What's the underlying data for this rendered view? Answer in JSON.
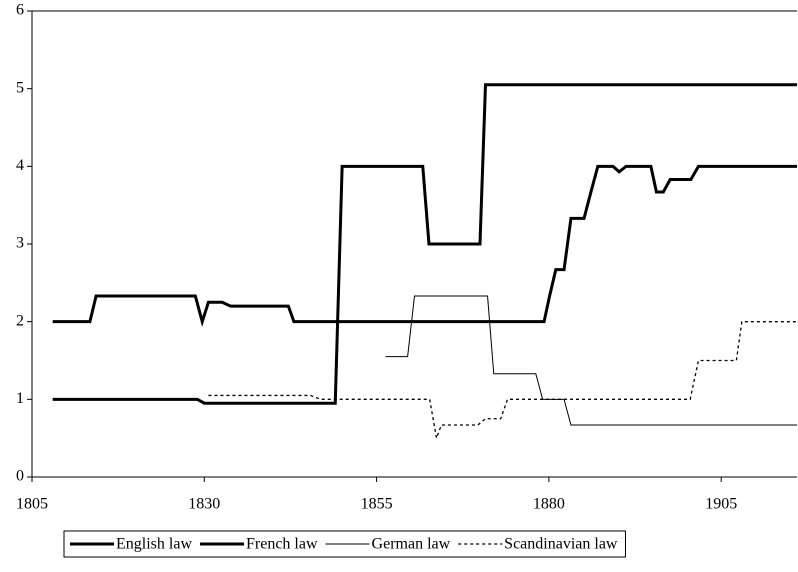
{
  "chart_data": {
    "type": "line",
    "xlim": [
      1805,
      1916
    ],
    "xticks": [
      1805,
      1830,
      1855,
      1880,
      1905
    ],
    "ylim": [
      0,
      6
    ],
    "yticks": [
      0,
      1,
      2,
      3,
      4,
      5,
      6
    ],
    "grid": false,
    "legend": "bottom",
    "series": [
      {
        "name": "English law",
        "color": "#000000",
        "line_width": 3,
        "dash": "none",
        "x": [
          1808,
          1829,
          1830,
          1849,
          1850,
          1861.7,
          1862.6,
          1870,
          1870.8,
          1916
        ],
        "values": [
          1,
          1,
          0.95,
          0.95,
          4,
          4,
          3,
          3,
          5.05,
          5.05
        ]
      },
      {
        "name": "French law",
        "color": "#000000",
        "line_width": 3,
        "dash": "none",
        "x": [
          1808,
          1813.4,
          1814.3,
          1828.7,
          1829.7,
          1830.6,
          1832.6,
          1833.8,
          1842.2,
          1843,
          1879.3,
          1880.1,
          1881,
          1882.2,
          1883.2,
          1885.1,
          1886.1,
          1887.1,
          1889.3,
          1890.2,
          1891.2,
          1894.8,
          1895.6,
          1896.6,
          1897.6,
          1900.6,
          1901.7,
          1916
        ],
        "values": [
          2,
          2,
          2.33,
          2.33,
          2,
          2.25,
          2.25,
          2.2,
          2.2,
          2,
          2,
          2.33,
          2.67,
          2.67,
          3.33,
          3.33,
          3.67,
          4,
          4,
          3.93,
          4,
          4,
          3.67,
          3.67,
          3.83,
          3.83,
          4,
          4
        ]
      },
      {
        "name": "German law",
        "color": "#000000",
        "line_width": 1,
        "dash": "none",
        "x": [
          1856.3,
          1859.5,
          1860.5,
          1871.1,
          1872,
          1878.1,
          1879.1,
          1882.2,
          1883.2,
          1916
        ],
        "values": [
          1.55,
          1.55,
          2.33,
          2.33,
          1.33,
          1.33,
          1,
          1,
          0.67,
          0.67
        ]
      },
      {
        "name": "Scandinavian law",
        "color": "#000000",
        "line_width": 1.3,
        "dash": "3,3",
        "x": [
          1830.6,
          1845.4,
          1846.9,
          1862.7,
          1863.7,
          1864.4,
          1869.7,
          1870.8,
          1873,
          1874,
          1900.5,
          1901.7,
          1907.2,
          1908,
          1916
        ],
        "values": [
          1.05,
          1.05,
          1,
          1,
          0.5,
          0.67,
          0.67,
          0.75,
          0.75,
          1,
          1,
          1.5,
          1.5,
          2,
          2
        ]
      }
    ]
  }
}
